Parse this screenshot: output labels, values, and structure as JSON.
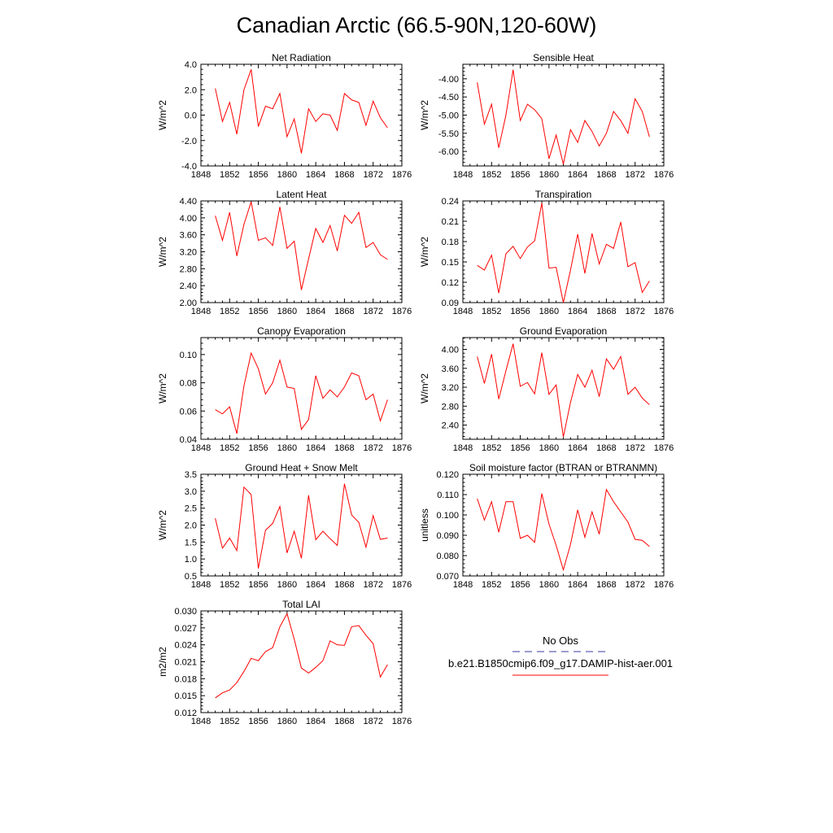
{
  "page": {
    "title": "Canadian Arctic (66.5-90N,120-60W)"
  },
  "legend": {
    "obs_label": "No Obs",
    "obs_color": "#3a3aa0",
    "model_label": "b.e21.B1850cmip6.f09_g17.DAMIP-hist-aer.001",
    "model_color": "#ff0000"
  },
  "chart_data": [
    {
      "type": "line",
      "title": "Net Radiation",
      "xlabel": "",
      "ylabel": "W/m^2",
      "xlim": [
        1848,
        1876
      ],
      "ylim": [
        -4.0,
        4.0
      ],
      "xticks": [
        "1848",
        "1852",
        "1856",
        "1860",
        "1864",
        "1868",
        "1872",
        "1876"
      ],
      "yticks": [
        "4.0",
        "2.0",
        "0.0",
        "-2.0",
        "-4.0"
      ],
      "x": [
        1850,
        1851,
        1852,
        1853,
        1854,
        1855,
        1856,
        1857,
        1858,
        1859,
        1860,
        1861,
        1862,
        1863,
        1864,
        1865,
        1866,
        1867,
        1868,
        1869,
        1870,
        1871,
        1872,
        1873,
        1874
      ],
      "series": [
        {
          "name": "b.e21.B1850cmip6.f09_g17.DAMIP-hist-aer.001",
          "values": [
            2.1,
            -0.5,
            1.0,
            -1.5,
            2.0,
            3.6,
            -0.9,
            0.7,
            0.5,
            1.7,
            -1.7,
            -0.3,
            -3.0,
            0.5,
            -0.5,
            0.1,
            0.0,
            -1.2,
            1.7,
            1.2,
            1.0,
            -0.8,
            1.1,
            -0.2,
            -1.0
          ]
        }
      ]
    },
    {
      "type": "line",
      "title": "Sensible Heat",
      "xlabel": "",
      "ylabel": "W/m^2",
      "xlim": [
        1848,
        1876
      ],
      "ylim": [
        -6.4,
        -3.6
      ],
      "xticks": [
        "1848",
        "1852",
        "1856",
        "1860",
        "1864",
        "1868",
        "1872",
        "1876"
      ],
      "yticks": [
        "-4.00",
        "-4.50",
        "-5.00",
        "-5.50",
        "-6.00"
      ],
      "x": [
        1850,
        1851,
        1852,
        1853,
        1854,
        1855,
        1856,
        1857,
        1858,
        1859,
        1860,
        1861,
        1862,
        1863,
        1864,
        1865,
        1866,
        1867,
        1868,
        1869,
        1870,
        1871,
        1872,
        1873,
        1874
      ],
      "series": [
        {
          "name": "b.e21.B1850cmip6.f09_g17.DAMIP-hist-aer.001",
          "values": [
            -4.1,
            -5.25,
            -4.7,
            -5.9,
            -5.0,
            -3.75,
            -5.15,
            -4.7,
            -4.85,
            -5.1,
            -6.2,
            -5.55,
            -6.35,
            -5.4,
            -5.75,
            -5.15,
            -5.45,
            -5.85,
            -5.5,
            -4.9,
            -5.15,
            -5.5,
            -4.55,
            -4.9,
            -5.6
          ]
        }
      ]
    },
    {
      "type": "line",
      "title": "Latent Heat",
      "xlabel": "",
      "ylabel": "W/m^2",
      "xlim": [
        1848,
        1876
      ],
      "ylim": [
        2.0,
        4.4
      ],
      "xticks": [
        "1848",
        "1852",
        "1856",
        "1860",
        "1864",
        "1868",
        "1872",
        "1876"
      ],
      "yticks": [
        "4.40",
        "4.00",
        "3.60",
        "3.20",
        "2.80",
        "2.40",
        "2.00"
      ],
      "x": [
        1850,
        1851,
        1852,
        1853,
        1854,
        1855,
        1856,
        1857,
        1858,
        1859,
        1860,
        1861,
        1862,
        1863,
        1864,
        1865,
        1866,
        1867,
        1868,
        1869,
        1870,
        1871,
        1872,
        1873,
        1874
      ],
      "series": [
        {
          "name": "b.e21.B1850cmip6.f09_g17.DAMIP-hist-aer.001",
          "values": [
            4.05,
            3.47,
            4.13,
            3.1,
            3.85,
            4.38,
            3.47,
            3.53,
            3.35,
            4.26,
            3.28,
            3.45,
            2.3,
            3.03,
            3.75,
            3.42,
            3.82,
            3.22,
            4.06,
            3.87,
            4.13,
            3.3,
            3.42,
            3.13,
            3.02
          ]
        }
      ]
    },
    {
      "type": "line",
      "title": "Transpiration",
      "xlabel": "",
      "ylabel": "W/m^2",
      "xlim": [
        1848,
        1876
      ],
      "ylim": [
        0.09,
        0.24
      ],
      "xticks": [
        "1848",
        "1852",
        "1856",
        "1860",
        "1864",
        "1868",
        "1872",
        "1876"
      ],
      "yticks": [
        "0.24",
        "0.21",
        "0.18",
        "0.15",
        "0.12",
        "0.09"
      ],
      "x": [
        1850,
        1851,
        1852,
        1853,
        1854,
        1855,
        1856,
        1857,
        1858,
        1859,
        1860,
        1861,
        1862,
        1863,
        1864,
        1865,
        1866,
        1867,
        1868,
        1869,
        1870,
        1871,
        1872,
        1873,
        1874
      ],
      "series": [
        {
          "name": "b.e21.B1850cmip6.f09_g17.DAMIP-hist-aer.001",
          "values": [
            0.145,
            0.138,
            0.16,
            0.104,
            0.162,
            0.173,
            0.155,
            0.172,
            0.181,
            0.237,
            0.141,
            0.142,
            0.09,
            0.138,
            0.191,
            0.133,
            0.192,
            0.147,
            0.176,
            0.17,
            0.209,
            0.143,
            0.149,
            0.105,
            0.122
          ]
        }
      ]
    },
    {
      "type": "line",
      "title": "Canopy Evaporation",
      "xlabel": "",
      "ylabel": "W/m^2",
      "xlim": [
        1848,
        1876
      ],
      "ylim": [
        0.04,
        0.112
      ],
      "xticks": [
        "1848",
        "1852",
        "1856",
        "1860",
        "1864",
        "1868",
        "1872",
        "1876"
      ],
      "yticks": [
        "0.10",
        "0.08",
        "0.06",
        "0.04"
      ],
      "x": [
        1850,
        1851,
        1852,
        1853,
        1854,
        1855,
        1856,
        1857,
        1858,
        1859,
        1860,
        1861,
        1862,
        1863,
        1864,
        1865,
        1866,
        1867,
        1868,
        1869,
        1870,
        1871,
        1872,
        1873,
        1874
      ],
      "series": [
        {
          "name": "b.e21.B1850cmip6.f09_g17.DAMIP-hist-aer.001",
          "values": [
            0.061,
            0.058,
            0.063,
            0.044,
            0.078,
            0.101,
            0.09,
            0.072,
            0.08,
            0.096,
            0.077,
            0.076,
            0.047,
            0.054,
            0.085,
            0.069,
            0.075,
            0.07,
            0.077,
            0.087,
            0.085,
            0.068,
            0.072,
            0.053,
            0.068
          ]
        }
      ]
    },
    {
      "type": "line",
      "title": "Ground Evaporation",
      "xlabel": "",
      "ylabel": "W/m^2",
      "xlim": [
        1848,
        1876
      ],
      "ylim": [
        2.1,
        4.25
      ],
      "xticks": [
        "1848",
        "1852",
        "1856",
        "1860",
        "1864",
        "1868",
        "1872",
        "1876"
      ],
      "yticks": [
        "4.00",
        "3.60",
        "3.20",
        "2.80",
        "2.40"
      ],
      "x": [
        1850,
        1851,
        1852,
        1853,
        1854,
        1855,
        1856,
        1857,
        1858,
        1859,
        1860,
        1861,
        1862,
        1863,
        1864,
        1865,
        1866,
        1867,
        1868,
        1869,
        1870,
        1871,
        1872,
        1873,
        1874
      ],
      "series": [
        {
          "name": "b.e21.B1850cmip6.f09_g17.DAMIP-hist-aer.001",
          "values": [
            3.85,
            3.28,
            3.9,
            2.95,
            3.55,
            4.12,
            3.22,
            3.3,
            3.06,
            3.93,
            3.05,
            3.25,
            2.15,
            2.88,
            3.47,
            3.2,
            3.56,
            3.0,
            3.8,
            3.58,
            3.85,
            3.05,
            3.2,
            2.97,
            2.83
          ]
        }
      ]
    },
    {
      "type": "line",
      "title": "Ground Heat + Snow Melt",
      "xlabel": "",
      "ylabel": "W/m^2",
      "xlim": [
        1848,
        1876
      ],
      "ylim": [
        0.5,
        3.5
      ],
      "xticks": [
        "1848",
        "1852",
        "1856",
        "1860",
        "1864",
        "1868",
        "1872",
        "1876"
      ],
      "yticks": [
        "3.5",
        "3.0",
        "2.5",
        "2.0",
        "1.5",
        "1.0",
        "0.5"
      ],
      "x": [
        1850,
        1851,
        1852,
        1853,
        1854,
        1855,
        1856,
        1857,
        1858,
        1859,
        1860,
        1861,
        1862,
        1863,
        1864,
        1865,
        1866,
        1867,
        1868,
        1869,
        1870,
        1871,
        1872,
        1873,
        1874
      ],
      "series": [
        {
          "name": "b.e21.B1850cmip6.f09_g17.DAMIP-hist-aer.001",
          "values": [
            2.2,
            1.32,
            1.62,
            1.25,
            3.12,
            2.9,
            0.72,
            1.85,
            2.05,
            2.55,
            1.18,
            1.82,
            1.02,
            2.88,
            1.57,
            1.82,
            1.6,
            1.4,
            3.22,
            2.3,
            2.08,
            1.35,
            2.28,
            1.58,
            1.62
          ]
        }
      ]
    },
    {
      "type": "line",
      "title": "Soil moisture factor (BTRAN or BTRANMN)",
      "xlabel": "",
      "ylabel": "unitless",
      "xlim": [
        1848,
        1876
      ],
      "ylim": [
        0.07,
        0.12
      ],
      "xticks": [
        "1848",
        "1852",
        "1856",
        "1860",
        "1864",
        "1868",
        "1872",
        "1876"
      ],
      "yticks": [
        "0.120",
        "0.110",
        "0.100",
        "0.090",
        "0.080",
        "0.070"
      ],
      "x": [
        1850,
        1851,
        1852,
        1853,
        1854,
        1855,
        1856,
        1857,
        1858,
        1859,
        1860,
        1861,
        1862,
        1863,
        1864,
        1865,
        1866,
        1867,
        1868,
        1869,
        1870,
        1871,
        1872,
        1873,
        1874
      ],
      "series": [
        {
          "name": "b.e21.B1850cmip6.f09_g17.DAMIP-hist-aer.001",
          "values": [
            0.108,
            0.0975,
            0.1065,
            0.0915,
            0.1065,
            0.1065,
            0.0885,
            0.09,
            0.0865,
            0.1105,
            0.0955,
            0.085,
            0.073,
            0.0855,
            0.1025,
            0.089,
            0.1015,
            0.0905,
            0.1125,
            0.1065,
            0.1015,
            0.0965,
            0.088,
            0.0875,
            0.0845
          ]
        }
      ]
    },
    {
      "type": "line",
      "title": "Total LAI",
      "xlabel": "",
      "ylabel": "m2/m2",
      "xlim": [
        1848,
        1876
      ],
      "ylim": [
        0.012,
        0.03
      ],
      "xticks": [
        "1848",
        "1852",
        "1856",
        "1860",
        "1864",
        "1868",
        "1872",
        "1876"
      ],
      "yticks": [
        "0.030",
        "0.027",
        "0.024",
        "0.021",
        "0.018",
        "0.015",
        "0.012"
      ],
      "x": [
        1850,
        1851,
        1852,
        1853,
        1854,
        1855,
        1856,
        1857,
        1858,
        1859,
        1860,
        1861,
        1862,
        1863,
        1864,
        1865,
        1866,
        1867,
        1868,
        1869,
        1870,
        1871,
        1872,
        1873,
        1874
      ],
      "series": [
        {
          "name": "b.e21.B1850cmip6.f09_g17.DAMIP-hist-aer.001",
          "values": [
            0.0146,
            0.0155,
            0.016,
            0.0173,
            0.0193,
            0.0216,
            0.0212,
            0.0228,
            0.0235,
            0.0272,
            0.0295,
            0.025,
            0.0199,
            0.019,
            0.02,
            0.0212,
            0.0247,
            0.024,
            0.0239,
            0.0272,
            0.0274,
            0.0257,
            0.0242,
            0.0183,
            0.0205
          ]
        }
      ]
    }
  ]
}
